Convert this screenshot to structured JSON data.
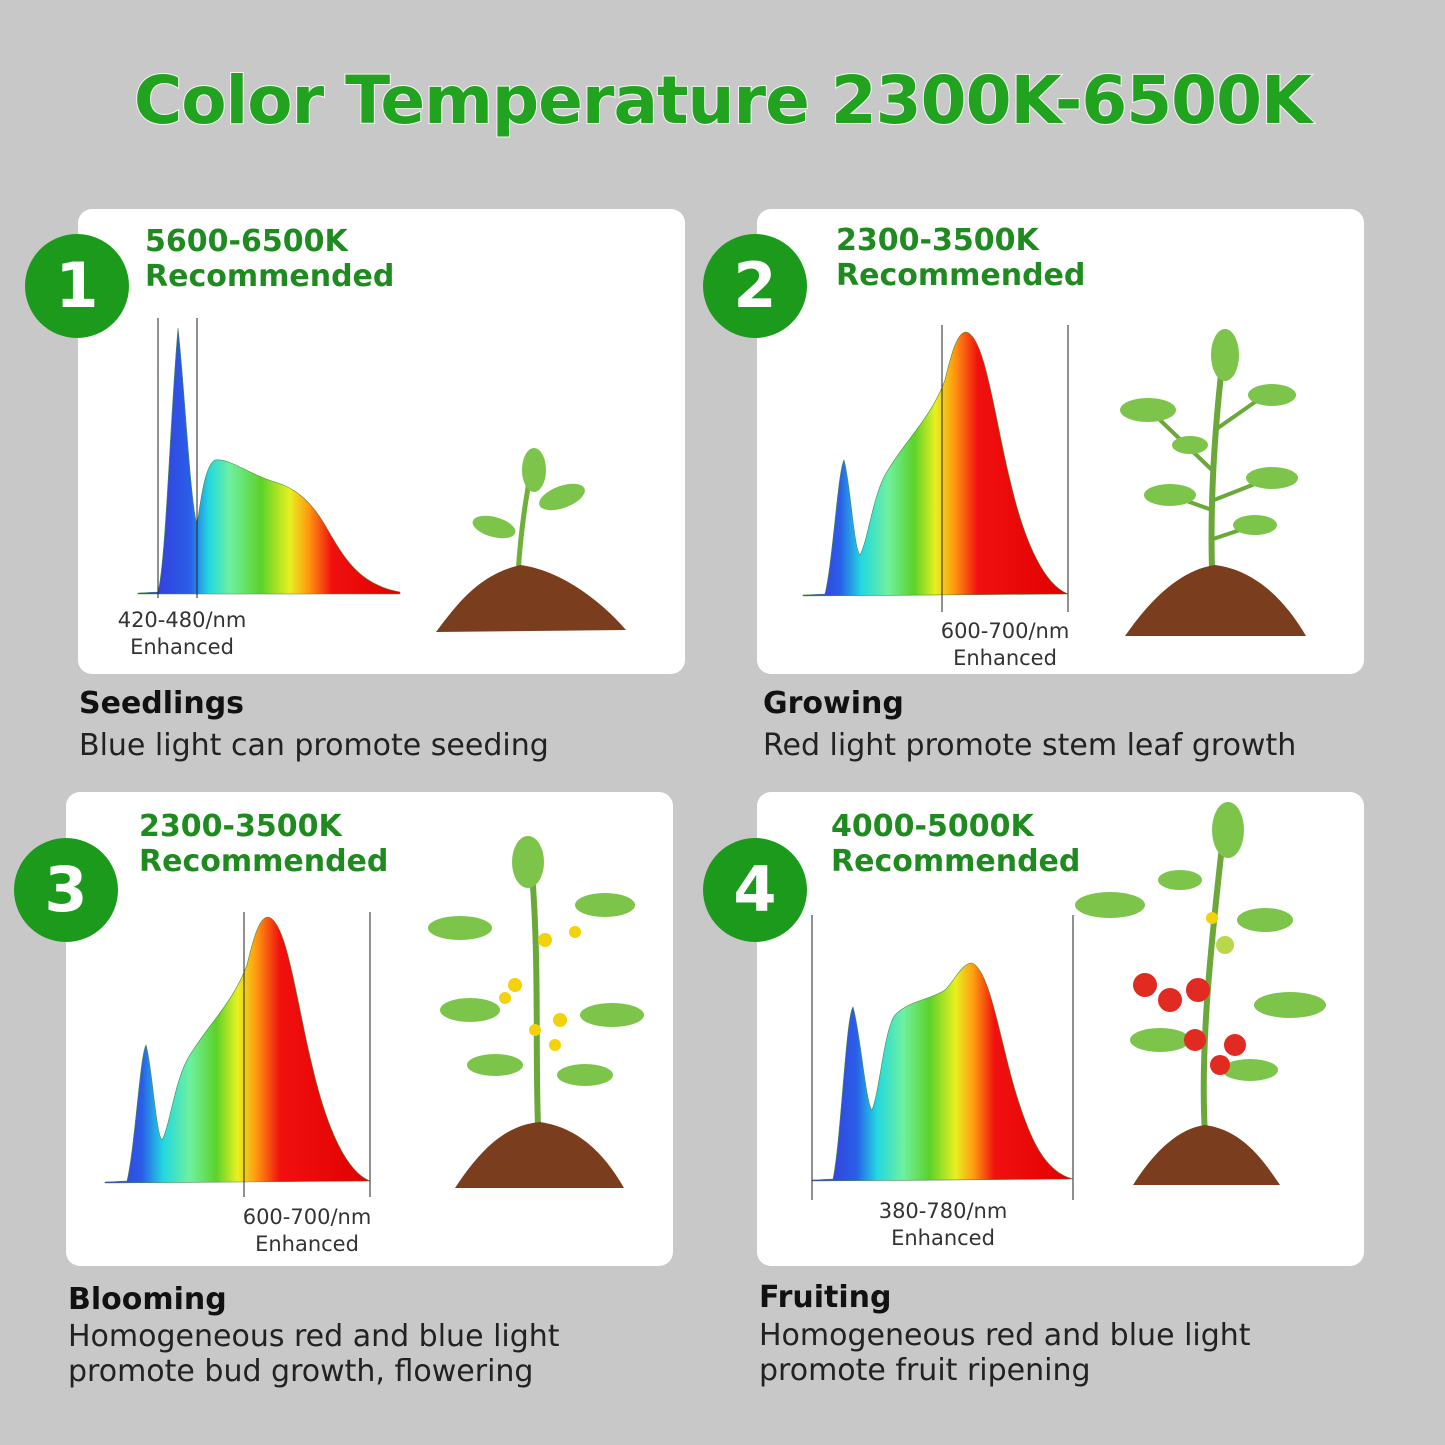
{
  "title": "Color Temperature 2300K-6500K",
  "colors": {
    "accent": "#1c9a1c",
    "title": "#22a31f",
    "background": "#c8c8c8"
  },
  "panels": [
    {
      "number": "1",
      "temp": "5600-6500K",
      "recommended": "Recommended",
      "band": "420-480/nm",
      "enhanced": "Enhanced",
      "stage": "Seedlings",
      "description": "Blue light can promote seeding",
      "icon": "seedling-icon"
    },
    {
      "number": "2",
      "temp": "2300-3500K",
      "recommended": "Recommended",
      "band": "600-700/nm",
      "enhanced": "Enhanced",
      "stage": "Growing",
      "description": "Red light promote stem leaf growth",
      "icon": "young-plant-icon"
    },
    {
      "number": "3",
      "temp": "2300-3500K",
      "recommended": "Recommended",
      "band": "600-700/nm",
      "enhanced": "Enhanced",
      "stage": "Blooming",
      "description_line1": "Homogeneous red and blue light",
      "description_line2": "promote bud growth, flowering",
      "icon": "flowering-plant-icon"
    },
    {
      "number": "4",
      "temp": "4000-5000K",
      "recommended": "Recommended",
      "band": "380-780/nm",
      "enhanced": "Enhanced",
      "stage": "Fruiting",
      "description_line1": "Homogeneous red and blue light",
      "description_line2": "promote fruit ripening",
      "icon": "tomato-plant-icon"
    }
  ]
}
